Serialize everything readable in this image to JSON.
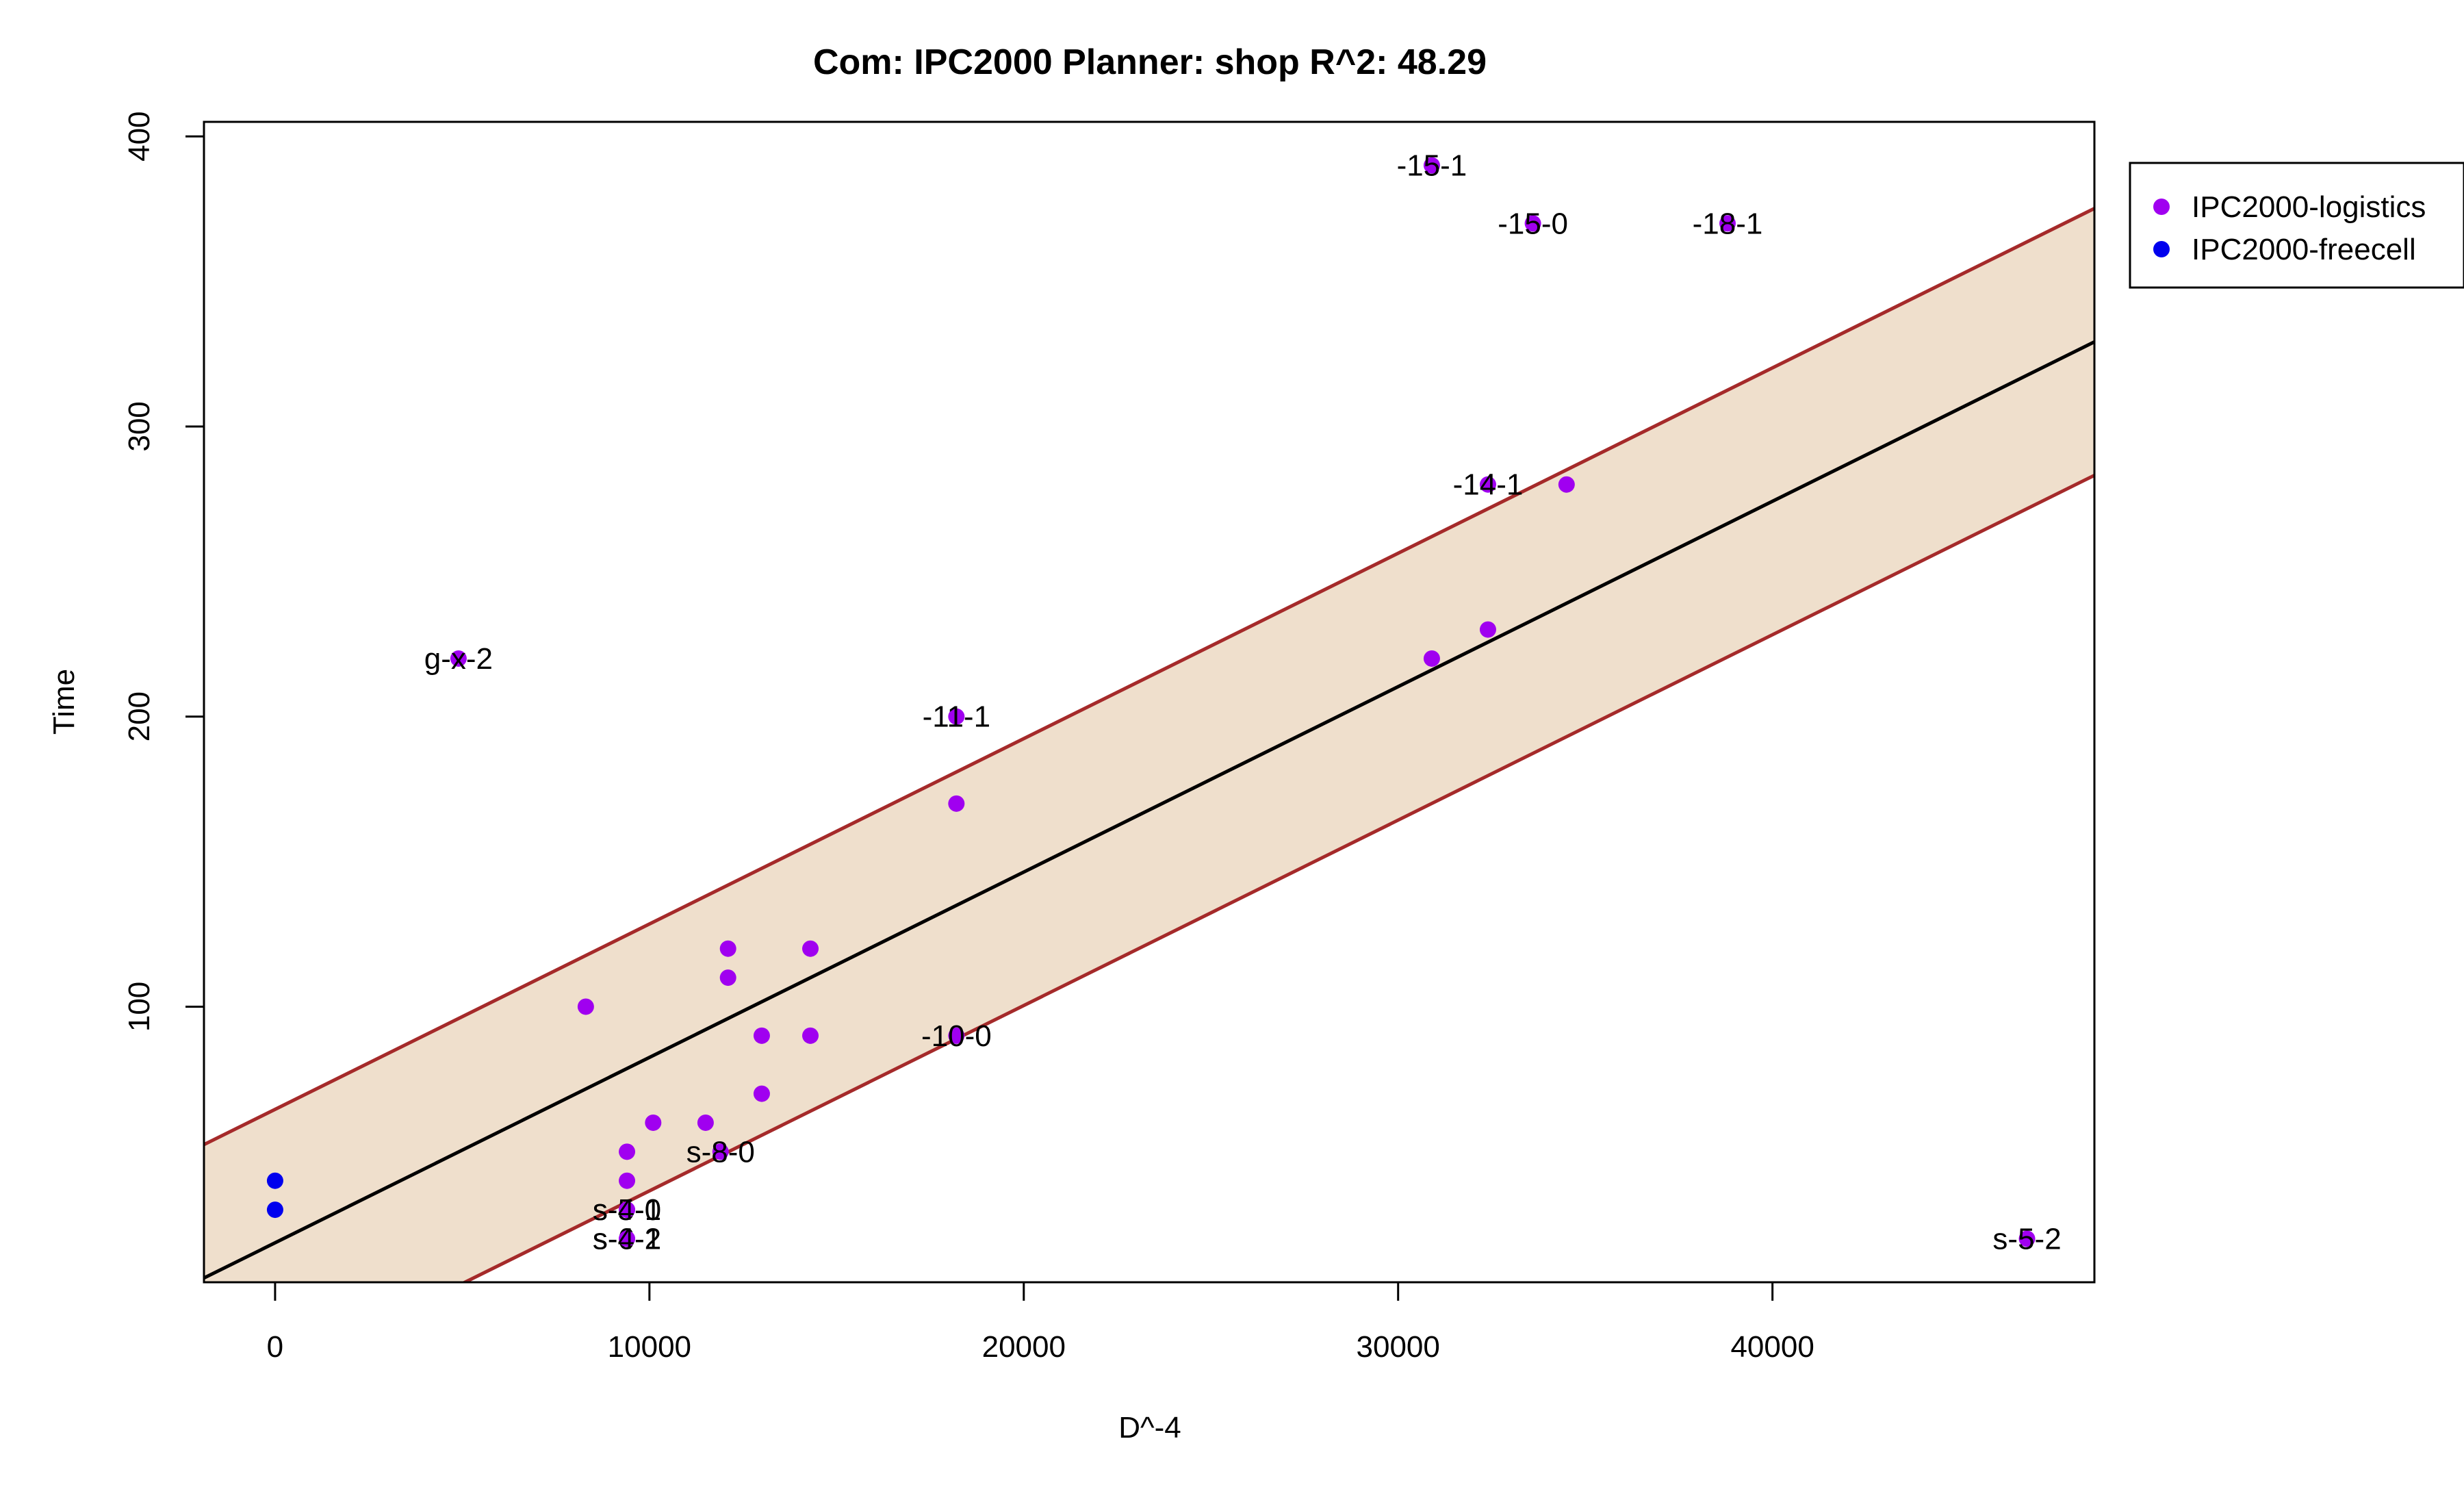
{
  "chart_data": {
    "type": "scatter",
    "title": "Com: IPC2000 Planner: shop R^2: 48.29",
    "xlabel": "D^-4",
    "ylabel": "Time",
    "xlim": [
      -1900,
      48600
    ],
    "ylim": [
      5,
      405
    ],
    "xticks": [
      0,
      10000,
      20000,
      30000,
      40000
    ],
    "yticks": [
      100,
      200,
      300,
      400
    ],
    "legend": {
      "position": "top-right-outside",
      "entries": [
        {
          "label": "IPC2000-logistics",
          "color": "#a000f0"
        },
        {
          "label": "IPC2000-freecell",
          "color": "#0000ee"
        }
      ]
    },
    "regression": {
      "intercept": 18.6,
      "slope": 0.00639
    },
    "band": {
      "halfwidth": 46,
      "fill": "#efdfcc",
      "line_color": "#a52a2a"
    },
    "series": [
      {
        "name": "IPC2000-logistics",
        "color": "#a000f0",
        "points": [
          {
            "x": 4900,
            "y": 220,
            "label": "g-x-2"
          },
          {
            "x": 8300,
            "y": 100
          },
          {
            "x": 9400,
            "y": 50
          },
          {
            "x": 9400,
            "y": 40
          },
          {
            "x": 9400,
            "y": 30,
            "label": "s-5-0"
          },
          {
            "x": 9400,
            "y": 30,
            "label": "s-4-1"
          },
          {
            "x": 9400,
            "y": 20,
            "label": "s-6-2"
          },
          {
            "x": 9400,
            "y": 20,
            "label": "s-4-1"
          },
          {
            "x": 10100,
            "y": 60
          },
          {
            "x": 11500,
            "y": 60
          },
          {
            "x": 11900,
            "y": 50,
            "label": "s-8-0"
          },
          {
            "x": 12100,
            "y": 120
          },
          {
            "x": 12100,
            "y": 110
          },
          {
            "x": 13000,
            "y": 90
          },
          {
            "x": 13000,
            "y": 70
          },
          {
            "x": 14300,
            "y": 120
          },
          {
            "x": 14300,
            "y": 90
          },
          {
            "x": 18200,
            "y": 200,
            "label": "-11-1"
          },
          {
            "x": 18200,
            "y": 170
          },
          {
            "x": 18200,
            "y": 90,
            "label": "-10-0"
          },
          {
            "x": 30900,
            "y": 390,
            "label": "-15-1"
          },
          {
            "x": 30900,
            "y": 220
          },
          {
            "x": 32400,
            "y": 280,
            "label": "-14-1"
          },
          {
            "x": 32400,
            "y": 230
          },
          {
            "x": 33600,
            "y": 370,
            "label": "-15-0"
          },
          {
            "x": 34500,
            "y": 280
          },
          {
            "x": 38800,
            "y": 370,
            "label": "-18-1"
          },
          {
            "x": 46800,
            "y": 20,
            "label": "s-5-2"
          }
        ]
      },
      {
        "name": "IPC2000-freecell",
        "color": "#0000ee",
        "points": [
          {
            "x": 0,
            "y": 40
          },
          {
            "x": 0,
            "y": 30
          }
        ]
      }
    ]
  }
}
